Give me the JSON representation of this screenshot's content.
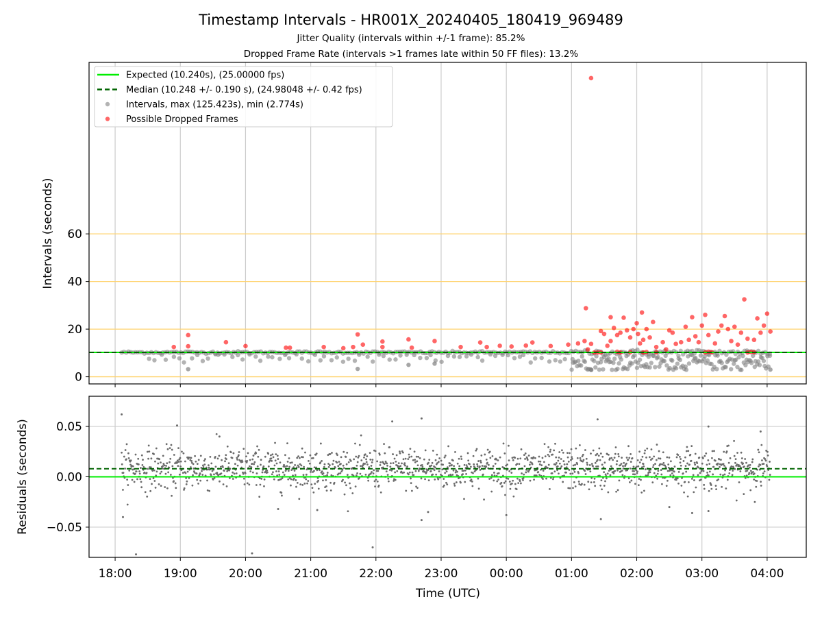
{
  "figure": {
    "title": "Timestamp Intervals - HR001X_20240405_180419_969489",
    "subtitle_1": "Jitter Quality (intervals within +/-1 frame): 85.2%",
    "subtitle_2": "Dropped Frame Rate (intervals >1 frames late within 50 FF files): 13.2%",
    "xlabel": "Time (UTC)"
  },
  "colors": {
    "expected": "#00ee00",
    "median": "#006400",
    "intervals": "#808080",
    "dropped": "#ff0000",
    "guide_lines": "#ffd36e",
    "grid": "#cccccc"
  },
  "chart_data": [
    {
      "type": "scatter",
      "panel": "intervals",
      "ylabel": "Intervals (seconds)",
      "x_axis": {
        "type": "time",
        "ticks": [
          "18:00",
          "19:00",
          "20:00",
          "21:00",
          "22:00",
          "23:00",
          "00:00",
          "01:00",
          "02:00",
          "03:00",
          "04:00"
        ],
        "xlim_hours": [
          17.6,
          28.6
        ]
      },
      "ylim": [
        -3,
        132
      ],
      "yticks": [
        0,
        20,
        40,
        60
      ],
      "grid": "vertical",
      "guide_lines_y": [
        0,
        20,
        40,
        60
      ],
      "legend": {
        "placement": "upper-left",
        "entries": [
          {
            "label": "Expected (10.240s), (25.00000 fps)",
            "kind": "line",
            "color": "#00ee00"
          },
          {
            "label": "Median (10.248 +/- 0.190 s), (24.98048 +/- 0.42 fps)",
            "kind": "dashed-line",
            "color": "#006400"
          },
          {
            "label": "Intervals, max (125.423s), min (2.774s)",
            "kind": "marker",
            "color": "#808080"
          },
          {
            "label": "Possible Dropped Frames",
            "kind": "marker",
            "color": "#ff0000"
          }
        ]
      },
      "expected_interval": 10.24,
      "median_interval": 10.248,
      "series": [
        {
          "name": "Possible Dropped Frames",
          "points": [
            [
              18.9,
              12.5
            ],
            [
              19.12,
              17.5
            ],
            [
              19.12,
              12.8
            ],
            [
              19.7,
              14.5
            ],
            [
              20.0,
              12.9
            ],
            [
              20.62,
              12.2
            ],
            [
              20.68,
              12.2
            ],
            [
              21.2,
              12.5
            ],
            [
              21.5,
              12.0
            ],
            [
              21.65,
              12.5
            ],
            [
              21.72,
              17.8
            ],
            [
              21.8,
              13.5
            ],
            [
              22.1,
              14.8
            ],
            [
              22.1,
              12.5
            ],
            [
              22.5,
              15.7
            ],
            [
              22.55,
              12.2
            ],
            [
              22.9,
              15.0
            ],
            [
              23.3,
              12.5
            ],
            [
              23.6,
              14.4
            ],
            [
              23.7,
              12.5
            ],
            [
              23.9,
              13.0
            ],
            [
              24.08,
              12.7
            ],
            [
              24.3,
              13.1
            ],
            [
              24.4,
              14.4
            ],
            [
              24.68,
              12.9
            ],
            [
              24.95,
              13.5
            ],
            [
              25.1,
              14.0
            ],
            [
              25.2,
              15.0
            ],
            [
              25.22,
              28.8
            ],
            [
              25.3,
              125.4
            ],
            [
              25.3,
              13.8
            ],
            [
              25.45,
              19.2
            ],
            [
              25.5,
              18.0
            ],
            [
              25.6,
              25.0
            ],
            [
              25.6,
              15.0
            ],
            [
              25.65,
              20.5
            ],
            [
              25.7,
              17.5
            ],
            [
              25.75,
              18.5
            ],
            [
              25.8,
              24.8
            ],
            [
              25.85,
              19.5
            ],
            [
              25.9,
              16.5
            ],
            [
              25.95,
              20.0
            ],
            [
              26.0,
              22.5
            ],
            [
              26.02,
              18.0
            ],
            [
              26.05,
              14.0
            ],
            [
              26.08,
              27.0
            ],
            [
              26.1,
              15.5
            ],
            [
              26.15,
              20.0
            ],
            [
              26.2,
              16.5
            ],
            [
              26.25,
              23.0
            ],
            [
              26.3,
              12.5
            ],
            [
              26.4,
              14.5
            ],
            [
              26.5,
              19.5
            ],
            [
              26.55,
              18.5
            ],
            [
              26.6,
              13.8
            ],
            [
              26.68,
              14.5
            ],
            [
              26.75,
              21.0
            ],
            [
              26.8,
              15.5
            ],
            [
              26.85,
              25.0
            ],
            [
              26.9,
              17.0
            ],
            [
              26.95,
              14.5
            ],
            [
              27.0,
              21.5
            ],
            [
              27.05,
              26.0
            ],
            [
              27.1,
              17.5
            ],
            [
              27.2,
              14.0
            ],
            [
              27.3,
              21.5
            ],
            [
              27.35,
              25.5
            ],
            [
              27.4,
              20.0
            ],
            [
              27.45,
              15.0
            ],
            [
              27.5,
              21.0
            ],
            [
              27.6,
              18.5
            ],
            [
              27.65,
              32.5
            ],
            [
              27.7,
              16.0
            ],
            [
              27.8,
              15.5
            ],
            [
              27.85,
              24.5
            ],
            [
              27.9,
              18.5
            ],
            [
              27.95,
              21.5
            ],
            [
              28.0,
              26.5
            ],
            [
              28.05,
              19.0
            ],
            [
              27.25,
              19.0
            ],
            [
              27.55,
              13.5
            ],
            [
              26.45,
              11.5
            ],
            [
              25.55,
              13.0
            ],
            [
              25.25,
              11.5
            ],
            [
              25.4,
              10.2
            ],
            [
              25.35,
              10.2
            ],
            [
              25.45,
              10.2
            ],
            [
              25.7,
              10.5
            ],
            [
              25.75,
              10.2
            ],
            [
              25.9,
              10.3
            ],
            [
              26.1,
              10.2
            ],
            [
              26.15,
              10.4
            ],
            [
              26.3,
              10.3
            ],
            [
              27.05,
              10.2
            ],
            [
              27.1,
              10.5
            ],
            [
              27.15,
              10.3
            ],
            [
              27.7,
              10.2
            ],
            [
              27.75,
              10.4
            ],
            [
              27.8,
              10.3
            ]
          ]
        }
      ]
    },
    {
      "type": "scatter",
      "panel": "residuals",
      "ylabel": "Residuals (seconds)",
      "ylim": [
        -0.08,
        0.08
      ],
      "yticks": [
        -0.05,
        0.0,
        0.05
      ],
      "ytick_labels": [
        "−0.05",
        "0.00",
        "0.05"
      ],
      "grid": "both",
      "expected_residual": 0.0,
      "median_residual": 0.008,
      "outlier_points": [
        [
          18.1,
          0.062
        ],
        [
          18.12,
          -0.04
        ],
        [
          18.32,
          -0.077
        ],
        [
          18.95,
          0.051
        ],
        [
          20.1,
          -0.076
        ],
        [
          21.95,
          -0.07
        ],
        [
          22.25,
          0.055
        ],
        [
          22.7,
          0.058
        ],
        [
          22.8,
          -0.035
        ],
        [
          22.7,
          -0.043
        ],
        [
          25.4,
          0.057
        ],
        [
          25.45,
          -0.042
        ],
        [
          26.5,
          -0.03
        ],
        [
          26.85,
          -0.036
        ],
        [
          27.1,
          -0.034
        ],
        [
          27.9,
          0.045
        ],
        [
          27.1,
          0.05
        ],
        [
          24.0,
          -0.038
        ],
        [
          21.1,
          -0.033
        ],
        [
          20.5,
          -0.032
        ],
        [
          19.6,
          0.04
        ]
      ]
    }
  ]
}
